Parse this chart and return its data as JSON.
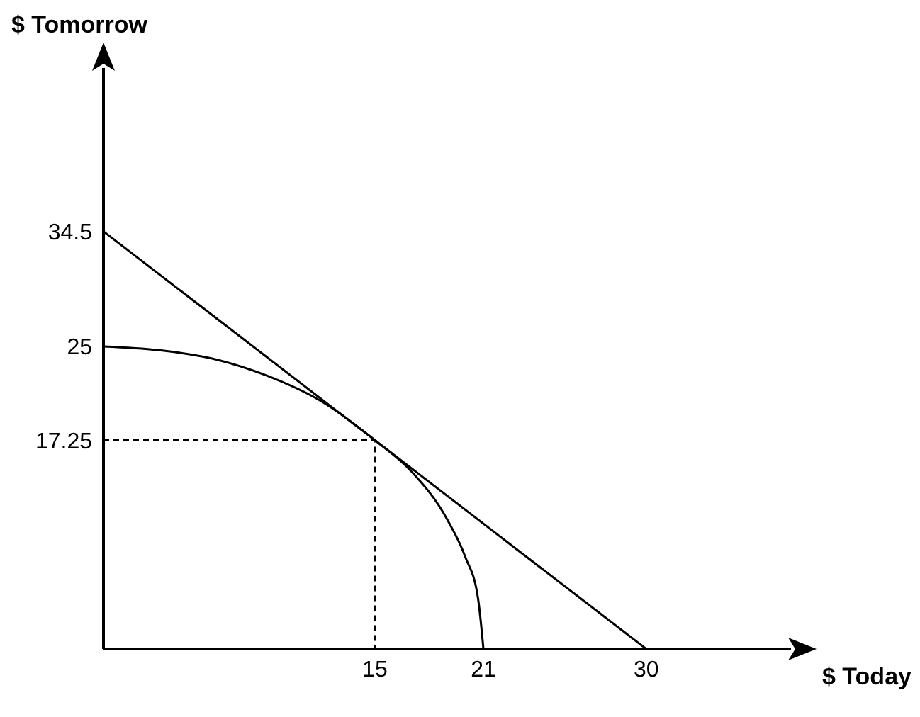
{
  "chart_data": {
    "type": "line",
    "xlabel": "$ Today",
    "ylabel": "$ Tomorrow",
    "xlim": [
      0,
      38
    ],
    "ylim": [
      0,
      48
    ],
    "xticks": [
      15,
      21,
      30
    ],
    "yticks": [
      17.25,
      25,
      34.5
    ],
    "series": [
      {
        "color": "#000000",
        "x": [
          0,
          30
        ],
        "values": [
          34.5,
          0
        ]
      },
      {
        "color": "#000000",
        "x": [
          0,
          3,
          6,
          9,
          12,
          15,
          17,
          19,
          20,
          20.7,
          21
        ],
        "values": [
          25,
          24.7,
          24,
          22.6,
          20.5,
          17.25,
          14.7,
          10.7,
          7.6,
          4.2,
          0
        ]
      },
      {
        "color": "#000000",
        "line_style": "dashed",
        "x": [
          0,
          15,
          15
        ],
        "values": [
          17.25,
          17.25,
          0
        ]
      }
    ]
  }
}
